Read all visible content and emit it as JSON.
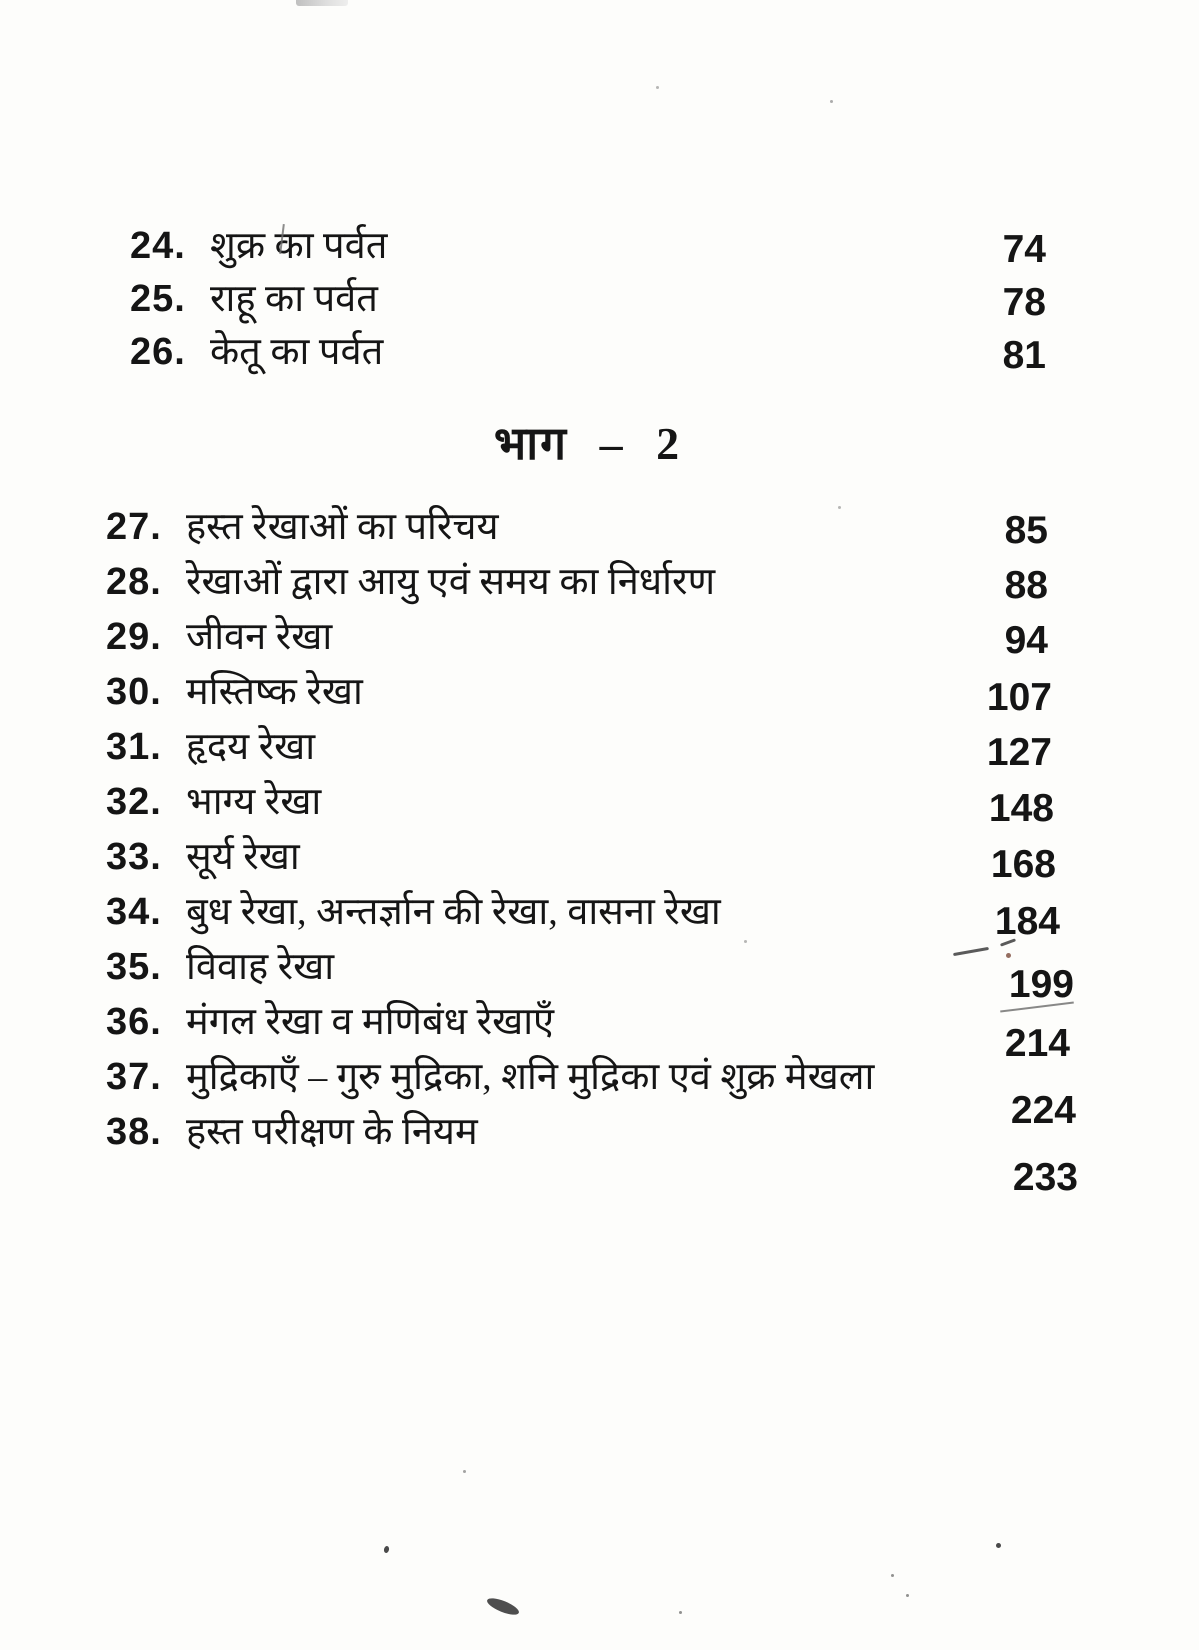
{
  "toc": {
    "part1_items": [
      {
        "num": "24.",
        "title": "शुक्र का पर्वत",
        "page": "74"
      },
      {
        "num": "25.",
        "title": "राहू का पर्वत",
        "page": "78"
      },
      {
        "num": "26.",
        "title": "केतू का पर्वत",
        "page": "81"
      }
    ],
    "part2_heading": "भाग – 2",
    "part2_items": [
      {
        "num": "27.",
        "title": "हस्त रेखाओं का परिचय",
        "page": "85"
      },
      {
        "num": "28.",
        "title": "रेखाओं द्वारा आयु एवं समय का निर्धारण",
        "page": "88"
      },
      {
        "num": "29.",
        "title": "जीवन रेखा",
        "page": "94"
      },
      {
        "num": "30.",
        "title": "मस्तिष्क रेखा",
        "page": "107"
      },
      {
        "num": "31.",
        "title": "हृदय रेखा",
        "page": "127"
      },
      {
        "num": "32.",
        "title": "भाग्य रेखा",
        "page": "148"
      },
      {
        "num": "33.",
        "title": "सूर्य रेखा",
        "page": "168"
      },
      {
        "num": "34.",
        "title": "बुध रेखा, अन्तर्ज्ञान की रेखा, वासना रेखा",
        "page": "184"
      },
      {
        "num": "35.",
        "title": "विवाह रेखा",
        "page": "199"
      },
      {
        "num": "36.",
        "title": "मंगल रेखा व मणिबंध रेखाएँ",
        "page": "214"
      },
      {
        "num": "37.",
        "title": "मुद्रिकाएँ – गुरु मुद्रिका, शनि मुद्रिका एवं शुक्र मेखला",
        "page": "224"
      },
      {
        "num": "38.",
        "title": "हस्त परीक्षण के नियम",
        "page": "233"
      }
    ]
  }
}
